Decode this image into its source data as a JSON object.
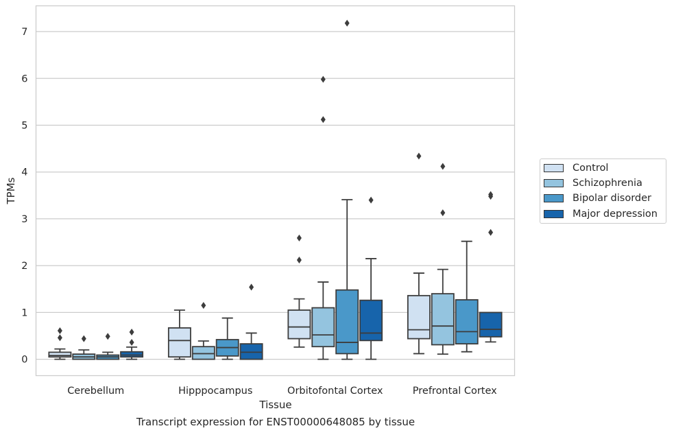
{
  "chart_data": {
    "type": "box",
    "xlabel": "Tissue",
    "ylabel": "TPMs",
    "caption": "Transcript expression for ENST00000648085 by tissue",
    "ylim": [
      -0.35,
      7.55
    ],
    "yticks": [
      0,
      1,
      2,
      3,
      4,
      5,
      6,
      7
    ],
    "grid": "horizontal",
    "legend_position": "right",
    "categories": [
      "Cerebellum",
      "Hipppocampus",
      "Orbitofontal Cortex",
      "Prefrontal Cortex"
    ],
    "series": [
      {
        "name": "Control",
        "color": "#d0e1f2",
        "boxes": [
          {
            "whisker_low": 0.0,
            "q1": 0.05,
            "median": 0.08,
            "q3": 0.15,
            "whisker_high": 0.22,
            "outliers": [
              0.46,
              0.61
            ]
          },
          {
            "whisker_low": 0.0,
            "q1": 0.05,
            "median": 0.4,
            "q3": 0.67,
            "whisker_high": 1.05,
            "outliers": []
          },
          {
            "whisker_low": 0.26,
            "q1": 0.44,
            "median": 0.69,
            "q3": 1.05,
            "whisker_high": 1.29,
            "outliers": [
              2.12,
              2.59
            ]
          },
          {
            "whisker_low": 0.12,
            "q1": 0.44,
            "median": 0.63,
            "q3": 1.36,
            "whisker_high": 1.84,
            "outliers": [
              4.34
            ]
          }
        ]
      },
      {
        "name": "Schizophrenia",
        "color": "#94c4df",
        "boxes": [
          {
            "whisker_low": 0.0,
            "q1": 0.0,
            "median": 0.05,
            "q3": 0.11,
            "whisker_high": 0.2,
            "outliers": [
              0.44
            ]
          },
          {
            "whisker_low": 0.0,
            "q1": 0.0,
            "median": 0.12,
            "q3": 0.27,
            "whisker_high": 0.39,
            "outliers": [
              1.15
            ]
          },
          {
            "whisker_low": 0.0,
            "q1": 0.27,
            "median": 0.52,
            "q3": 1.1,
            "whisker_high": 1.65,
            "outliers": [
              5.12,
              5.98
            ]
          },
          {
            "whisker_low": 0.11,
            "q1": 0.31,
            "median": 0.71,
            "q3": 1.4,
            "whisker_high": 1.92,
            "outliers": [
              3.13,
              4.12
            ]
          }
        ]
      },
      {
        "name": "Bipolar disorder",
        "color": "#4a98c9",
        "boxes": [
          {
            "whisker_low": 0.0,
            "q1": 0.0,
            "median": 0.05,
            "q3": 0.09,
            "whisker_high": 0.15,
            "outliers": [
              0.49
            ]
          },
          {
            "whisker_low": 0.0,
            "q1": 0.07,
            "median": 0.25,
            "q3": 0.42,
            "whisker_high": 0.88,
            "outliers": []
          },
          {
            "whisker_low": 0.0,
            "q1": 0.12,
            "median": 0.36,
            "q3": 1.48,
            "whisker_high": 3.41,
            "outliers": [
              7.18
            ]
          },
          {
            "whisker_low": 0.16,
            "q1": 0.33,
            "median": 0.59,
            "q3": 1.27,
            "whisker_high": 2.52,
            "outliers": []
          }
        ]
      },
      {
        "name": "Major depression",
        "color": "#1764ab",
        "boxes": [
          {
            "whisker_low": 0.0,
            "q1": 0.05,
            "median": 0.09,
            "q3": 0.16,
            "whisker_high": 0.26,
            "outliers": [
              0.36,
              0.58
            ]
          },
          {
            "whisker_low": 0.0,
            "q1": 0.0,
            "median": 0.15,
            "q3": 0.33,
            "whisker_high": 0.56,
            "outliers": [
              1.54
            ]
          },
          {
            "whisker_low": 0.0,
            "q1": 0.4,
            "median": 0.56,
            "q3": 1.26,
            "whisker_high": 2.15,
            "outliers": [
              3.4
            ]
          },
          {
            "whisker_low": 0.37,
            "q1": 0.48,
            "median": 0.64,
            "q3": 1.0,
            "whisker_high": 1.0,
            "outliers": [
              2.71,
              3.48,
              3.52
            ]
          }
        ]
      }
    ]
  }
}
